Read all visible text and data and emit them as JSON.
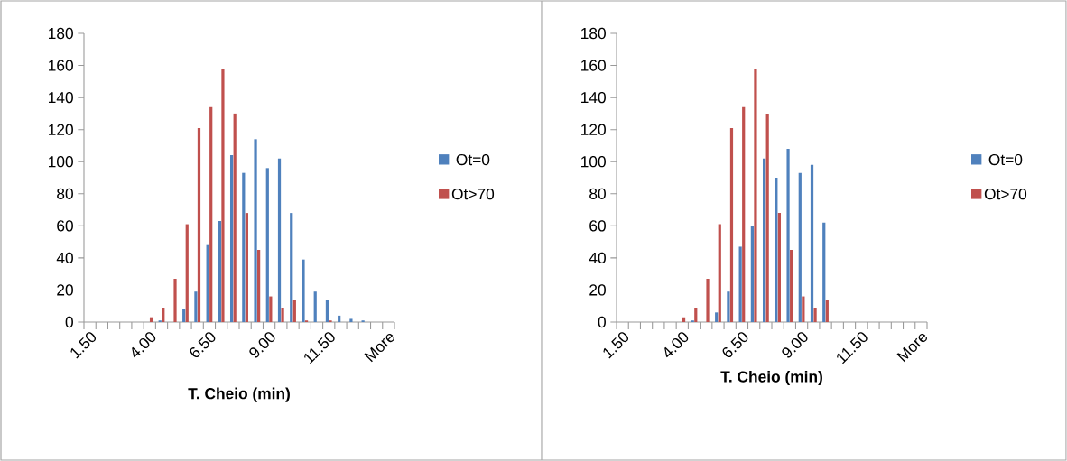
{
  "chart_data": [
    {
      "type": "bar",
      "xlabel": "T. Cheio (min)",
      "categories": [
        "1.50",
        null,
        null,
        null,
        null,
        "4.00",
        null,
        null,
        null,
        null,
        "6.50",
        null,
        null,
        null,
        null,
        "9.00",
        null,
        null,
        null,
        null,
        "11.50",
        null,
        null,
        null,
        null,
        "More"
      ],
      "series": [
        {
          "name": "Ot=0",
          "color": "#4f81bd",
          "values": [
            0,
            0,
            0,
            0,
            0,
            0,
            1,
            0,
            8,
            19,
            48,
            63,
            104,
            93,
            114,
            96,
            102,
            68,
            39,
            19,
            14,
            4,
            2,
            1,
            0,
            0
          ]
        },
        {
          "name": "Ot>70",
          "color": "#c0504d",
          "values": [
            0,
            0,
            0,
            0,
            0,
            3,
            9,
            27,
            61,
            121,
            134,
            158,
            130,
            68,
            45,
            16,
            9,
            14,
            1,
            0,
            1,
            0,
            0,
            0,
            0,
            0
          ]
        }
      ],
      "ylim": [
        0,
        180
      ],
      "yticks": [
        0,
        20,
        40,
        60,
        80,
        100,
        120,
        140,
        160,
        180
      ],
      "legend": "right"
    },
    {
      "type": "bar",
      "xlabel": "T. Cheio (min)",
      "categories": [
        "1.50",
        null,
        null,
        null,
        null,
        "4.00",
        null,
        null,
        null,
        null,
        "6.50",
        null,
        null,
        null,
        null,
        "9.00",
        null,
        null,
        null,
        null,
        "11.50",
        null,
        null,
        null,
        null,
        "More"
      ],
      "series": [
        {
          "name": "Ot=0",
          "color": "#4f81bd",
          "values": [
            0,
            0,
            0,
            0,
            0,
            0,
            1,
            0,
            6,
            19,
            47,
            60,
            102,
            90,
            108,
            93,
            98,
            62,
            0,
            0,
            0,
            0,
            0,
            0,
            0,
            0
          ]
        },
        {
          "name": "Ot>70",
          "color": "#c0504d",
          "values": [
            0,
            0,
            0,
            0,
            0,
            3,
            9,
            27,
            61,
            121,
            134,
            158,
            130,
            68,
            45,
            16,
            9,
            14,
            0,
            0,
            0,
            0,
            0,
            0,
            0,
            0
          ]
        }
      ],
      "ylim": [
        0,
        180
      ],
      "yticks": [
        0,
        20,
        40,
        60,
        80,
        100,
        120,
        140,
        160,
        180
      ],
      "legend": "right"
    }
  ]
}
